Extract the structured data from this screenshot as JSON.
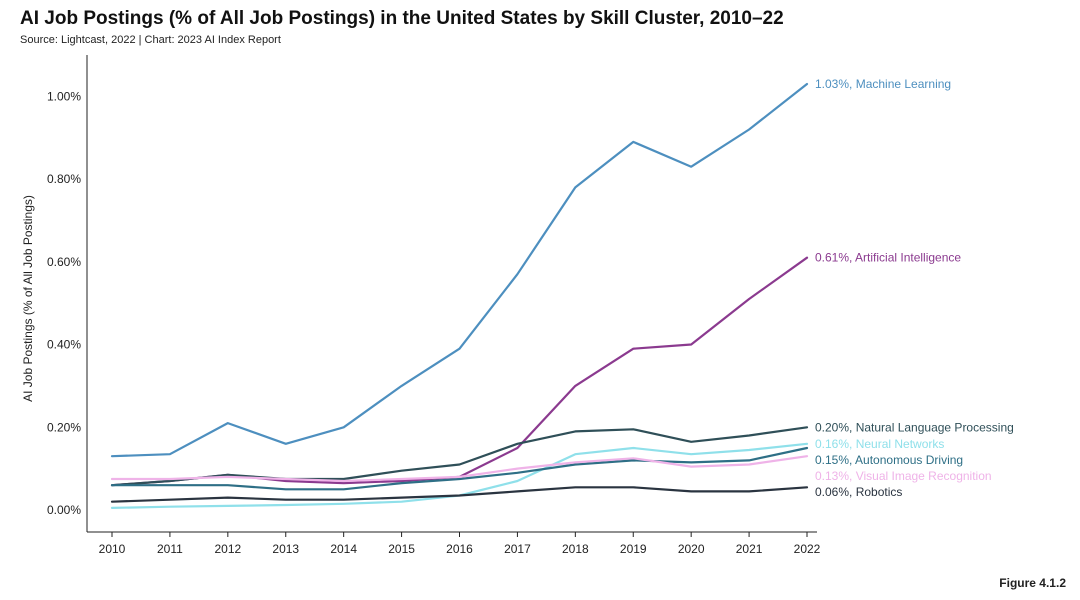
{
  "title": "AI Job Postings (% of All Job Postings) in the United States by Skill Cluster, 2010–22",
  "subtitle": "Source: Lightcast, 2022 | Chart: 2023 AI Index Report",
  "figure_label": "Figure 4.1.2",
  "chart_data": {
    "type": "line",
    "title": "AI Job Postings (% of All Job Postings) in the United States by Skill Cluster, 2010–22",
    "xlabel": "",
    "ylabel": "AI Job Postings (% of All Job Postings)",
    "x": [
      2010,
      2011,
      2012,
      2013,
      2014,
      2015,
      2016,
      2017,
      2018,
      2019,
      2020,
      2021,
      2022
    ],
    "ylim": [
      0,
      1.1
    ],
    "yticks": [
      0,
      0.2,
      0.4,
      0.6,
      0.8,
      1.0
    ],
    "ytick_labels": [
      "0.00%",
      "0.20%",
      "0.40%",
      "0.60%",
      "0.80%",
      "1.00%"
    ],
    "grid": false,
    "series": [
      {
        "name": "Machine Learning",
        "end_label": "1.03%, Machine Learning",
        "color": "#4d8fbf",
        "values": [
          0.13,
          0.135,
          0.21,
          0.16,
          0.2,
          0.3,
          0.39,
          0.57,
          0.78,
          0.89,
          0.83,
          0.92,
          1.03
        ]
      },
      {
        "name": "Artificial Intelligence",
        "end_label": "0.61%, Artificial Intelligence",
        "color": "#8b3a8f",
        "values": [
          0.06,
          0.07,
          0.085,
          0.07,
          0.065,
          0.07,
          0.08,
          0.15,
          0.3,
          0.39,
          0.4,
          0.51,
          0.61
        ]
      },
      {
        "name": "Natural Language Processing",
        "end_label": "0.20%, Natural Language Processing",
        "color": "#2f4f58",
        "values": [
          0.06,
          0.07,
          0.085,
          0.075,
          0.075,
          0.095,
          0.11,
          0.16,
          0.19,
          0.195,
          0.165,
          0.18,
          0.2
        ]
      },
      {
        "name": "Neural Networks",
        "end_label": "0.16%, Neural Networks",
        "color": "#8fe0ea",
        "values": [
          0.005,
          0.008,
          0.01,
          0.012,
          0.015,
          0.02,
          0.035,
          0.07,
          0.135,
          0.15,
          0.135,
          0.145,
          0.16
        ]
      },
      {
        "name": "Autonomous Driving",
        "end_label": "0.15%, Autonomous Driving",
        "color": "#2e6f86",
        "values": [
          0.06,
          0.06,
          0.06,
          0.05,
          0.05,
          0.065,
          0.075,
          0.09,
          0.11,
          0.12,
          0.115,
          0.12,
          0.15
        ]
      },
      {
        "name": "Visual Image Recognition",
        "end_label": "0.13%, Visual Image Recognition",
        "color": "#efb3e8",
        "values": [
          0.075,
          0.075,
          0.08,
          0.075,
          0.07,
          0.075,
          0.08,
          0.1,
          0.115,
          0.125,
          0.105,
          0.11,
          0.13
        ]
      },
      {
        "name": "Robotics",
        "end_label": "0.06%, Robotics",
        "color": "#2a3440",
        "values": [
          0.02,
          0.025,
          0.03,
          0.025,
          0.025,
          0.03,
          0.035,
          0.045,
          0.055,
          0.055,
          0.045,
          0.045,
          0.055
        ]
      }
    ]
  }
}
